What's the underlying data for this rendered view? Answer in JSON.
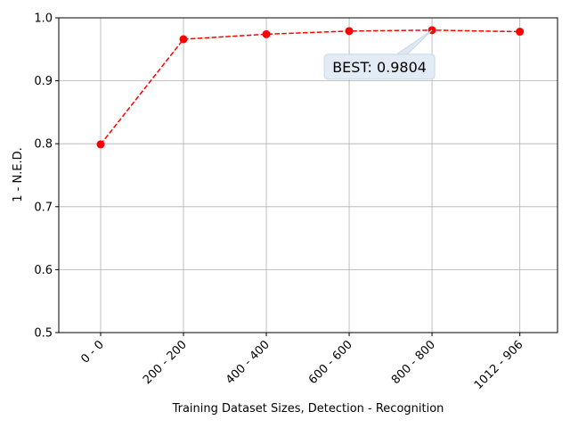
{
  "chart_data": {
    "type": "line",
    "x": [
      0,
      200,
      400,
      600,
      800,
      1012
    ],
    "xticks": [
      {
        "value": 0,
        "label": "0 - 0"
      },
      {
        "value": 200,
        "label": "200 - 200"
      },
      {
        "value": 400,
        "label": "400 - 400"
      },
      {
        "value": 600,
        "label": "600 - 600"
      },
      {
        "value": 800,
        "label": "800 - 800"
      },
      {
        "value": 1012,
        "label": "1012 - 906"
      }
    ],
    "xlim": [
      -101,
      1103
    ],
    "series": [
      {
        "color": "#ff0000",
        "values": [
          0.799,
          0.966,
          0.974,
          0.979,
          0.9804,
          0.978
        ]
      }
    ],
    "ylim": [
      0.5,
      1.0
    ],
    "yticks": [
      0.5,
      0.6,
      0.7,
      0.8,
      0.9,
      {
        "value": 1.0,
        "label": "1.0"
      }
    ],
    "xlabel": "Training Dataset Sizes, Detection - Recognition",
    "ylabel": "1 - N.E.D.",
    "annotation": "BEST: 0.9804",
    "grid": true
  }
}
